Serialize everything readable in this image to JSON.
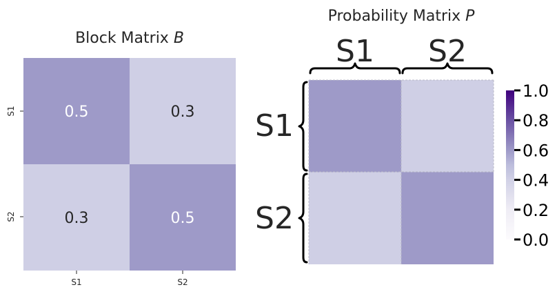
{
  "chart_data": [
    {
      "type": "heatmap",
      "title_text": "Block Matrix ",
      "title_var": "B",
      "x_categories": [
        "S1",
        "S2"
      ],
      "y_categories": [
        "S1",
        "S2"
      ],
      "values": [
        [
          0.5,
          0.3
        ],
        [
          0.3,
          0.5
        ]
      ],
      "annotated": true,
      "colormap": "Purples",
      "vmin": 0,
      "vmax": 1
    },
    {
      "type": "heatmap",
      "title_text": "Probability Matrix ",
      "title_var": "P",
      "block_labels": [
        "S1",
        "S2"
      ],
      "values": [
        [
          0.5,
          0.3
        ],
        [
          0.3,
          0.5
        ]
      ],
      "annotated": false,
      "colormap": "Purples",
      "vmin": 0,
      "vmax": 1,
      "colorbar_ticks": [
        "0.0",
        "0.2",
        "0.4",
        "0.6",
        "0.8",
        "1.0"
      ]
    }
  ],
  "colors": {
    "cell_0.5": "#9e9ac8",
    "cell_0.3": "#cfcfe5",
    "annot_dark_cell": "#ffffff",
    "annot_light_cell": "#262626",
    "colorbar_low": "#fcfbfd",
    "colorbar_mid": "#9e9ac8",
    "colorbar_high": "#3f007d"
  }
}
